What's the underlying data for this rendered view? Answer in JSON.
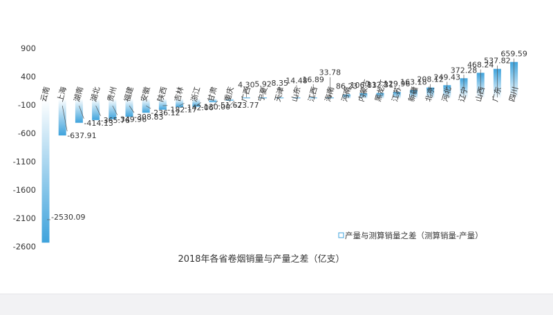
{
  "chart_data": {
    "type": "bar",
    "title": "2018年各省卷烟销量与产量之差（亿支）",
    "xlabel": "",
    "ylabel": "",
    "ylim": [
      -2600,
      900
    ],
    "yticks": [
      900,
      400,
      -100,
      -600,
      -1100,
      -1600,
      -2100,
      -2600
    ],
    "grid": false,
    "legend_position": "bottom-right",
    "categories": [
      "云南",
      "上海",
      "湖南",
      "湖北",
      "贵州",
      "福建",
      "安徽",
      "陕西",
      "吉林",
      "浙江",
      "甘肃",
      "重庆",
      "广西",
      "宁夏",
      "天津",
      "山东",
      "江西",
      "海南",
      "河南",
      "内蒙古",
      "黑龙江",
      "江苏",
      "新疆",
      "北京",
      "河北",
      "辽宁",
      "山西",
      "广东",
      "四川"
    ],
    "series": [
      {
        "name": "产量与测算销量之差（测算销量-产量）",
        "values": [
          -2530.09,
          -637.91,
          -414.13,
          -365.76,
          -349.96,
          -308.83,
          -236.12,
          -182.17,
          -142.06,
          -130.0,
          -51.67,
          -23.77,
          4.3,
          5.92,
          8.35,
          14.48,
          16.89,
          33.78,
          86.23,
          106.83,
          112.31,
          129.96,
          163.18,
          208.12,
          249.43,
          372.28,
          468.24,
          537.82,
          659.59
        ],
        "labels": [
          "-2530.09",
          "-637.91",
          "-414.13",
          "-365.76",
          "-349.96",
          "-308.83",
          "-236.12",
          "-182.17",
          "-142.06",
          "-130.00",
          "-51.67",
          "-23.77",
          "4.30",
          "5.92",
          "8.35",
          "14.48",
          "16.89",
          "33.78",
          "86.23",
          "106.83",
          "112.31",
          "129.96",
          "163.18",
          "208.12",
          "249.43",
          "372.28",
          "468.24",
          "537.82",
          "659.59"
        ]
      }
    ],
    "colors": {
      "bar_dark": "#3fa3dc",
      "bar_light": "#ffffff",
      "label": "#333333",
      "leader": "#555555",
      "axis_text": "#333333"
    }
  }
}
